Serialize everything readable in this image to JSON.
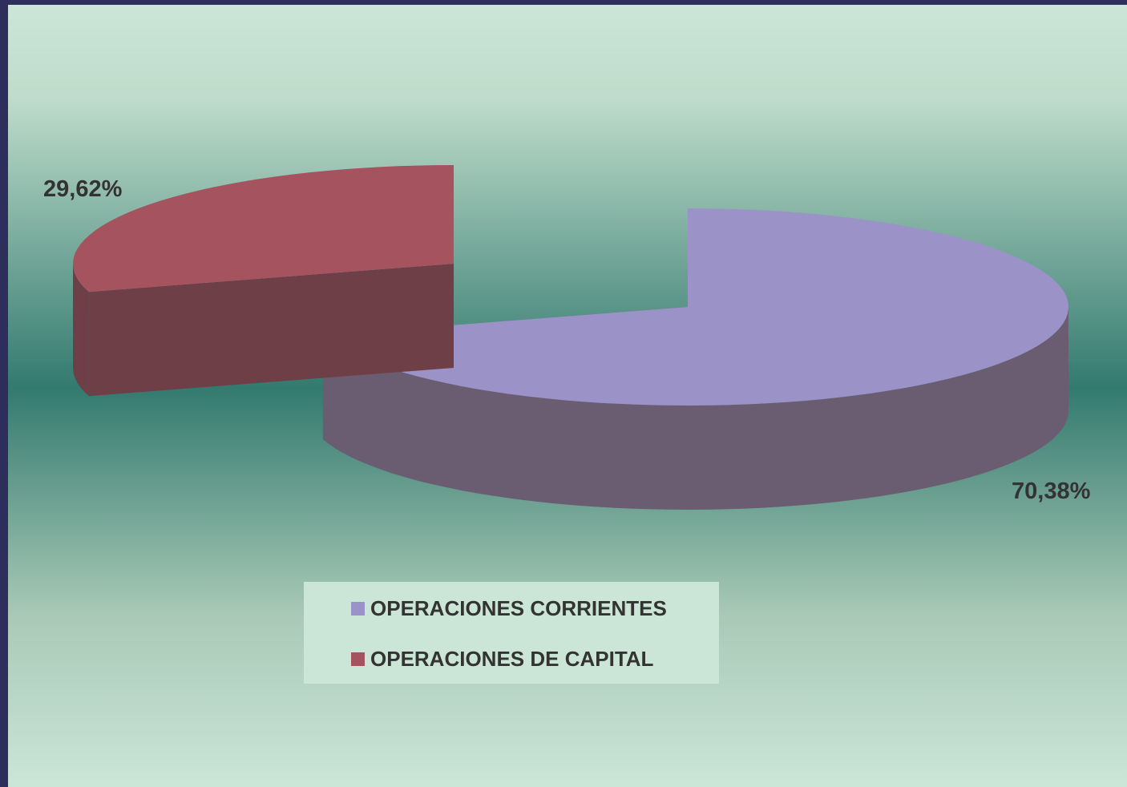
{
  "chart_data": {
    "type": "pie",
    "style": "3d-exploded",
    "categories": [
      "OPERACIONES CORRIENTES",
      "OPERACIONES DE CAPITAL"
    ],
    "values": [
      70.38,
      29.62
    ],
    "data_labels": [
      "70,38%",
      "29,62%"
    ],
    "colors": [
      "#9b93c7",
      "#a5545f"
    ],
    "side_colors": [
      "#6a5d72",
      "#6f3f48"
    ],
    "legend": {
      "position": "bottom",
      "entries": [
        {
          "label": "OPERACIONES CORRIENTES",
          "color": "#9b93c7"
        },
        {
          "label": "OPERACIONES DE CAPITAL",
          "color": "#a5545f"
        }
      ]
    },
    "background_colors": [
      "#cbe6d7",
      "#337a6f"
    ],
    "frame_color": "#2e2e5c"
  }
}
